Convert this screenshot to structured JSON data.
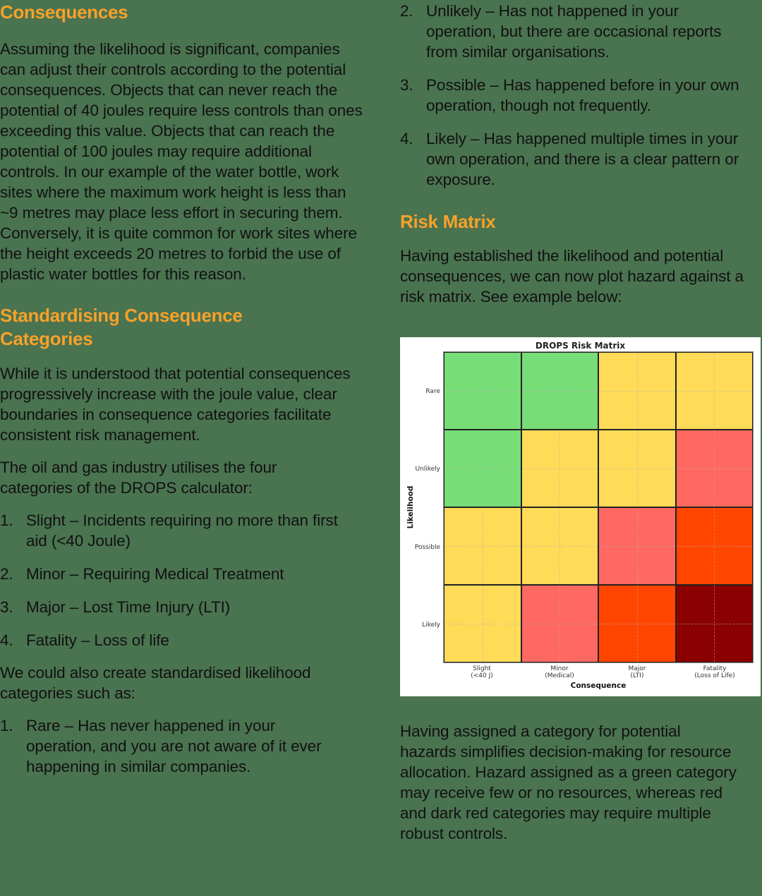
{
  "left_column": {
    "consequences": {
      "heading": "Consequences",
      "paragraph": "Assuming the likelihood is significant, companies can adjust their controls according to the potential consequences. Objects that can never reach the potential of 40 joules require less controls than ones exceeding this value. Objects that can reach the potential of 100 joules may require additional controls. In our example of the water bottle, work sites where the maximum work height is less than ~9 metres may place less effort in securing them. Conversely, it is quite common for work sites where the height exceeds 20 metres to forbid the use of plastic water bottles for this reason."
    },
    "standardising": {
      "heading": "Standardising Consequence Categories",
      "paragraph_1": "While it is understood that potential consequences progressively increase with the joule value, clear boundaries in consequence categories facilitate consistent risk management.",
      "paragraph_2": "The oil and gas industry utilises the four categories of the DROPS calculator:",
      "consequence_list": [
        {
          "num": "1.",
          "text": "Slight – Incidents requiring no more than first aid (<40 Joule)"
        },
        {
          "num": "2.",
          "text": "Minor – Requiring Medical Treatment"
        },
        {
          "num": "3.",
          "text": "Major – Lost Time Injury (LTI)"
        },
        {
          "num": "4.",
          "text": "Fatality – Loss of life"
        }
      ],
      "paragraph_3": "We could also create standardised likelihood categories such as:",
      "likelihood_list_start": [
        {
          "num": "1.",
          "text": "Rare – Has never happened in your operation, and you are not aware of it ever happening in similar companies."
        }
      ]
    }
  },
  "right_column": {
    "likelihood_list_continued": [
      {
        "num": "2.",
        "text": "Unlikely – Has not happened in your operation, but there are occasional reports from similar organisations."
      },
      {
        "num": "3.",
        "text": "Possible – Has happened before in your own operation, though not frequently."
      },
      {
        "num": "4.",
        "text": "Likely – Has happened multiple times in your own operation, and there is a clear pattern or exposure."
      }
    ],
    "risk_matrix": {
      "heading": "Risk Matrix",
      "intro": "Having established the likelihood and potential consequences, we can now plot hazard against a risk matrix. See example below:",
      "outro": "Having assigned a category for potential hazards simplifies decision-making for resource allocation. Hazard assigned as a green category may receive few or no resources, whereas red and dark red categories may require multiple robust controls."
    }
  },
  "colors": {
    "background": "#4a7350",
    "heading": "#f7a12a",
    "text": "#111111",
    "green": "#77dd77",
    "yellow": "#ffdb58",
    "light_red": "#ff6961",
    "orange_red": "#ff4500",
    "dark_red": "#8b0000"
  },
  "chart_data": {
    "type": "heatmap",
    "title": "DROPS Risk Matrix",
    "xlabel": "Consequence",
    "ylabel": "Likelihood",
    "x_categories": [
      "Slight\n(<40 J)",
      "Minor\n(Medical)",
      "Major\n(LTI)",
      "Fatality\n(Loss of Life)"
    ],
    "x_tick_lines": [
      [
        "Slight",
        "(<40 J)"
      ],
      [
        "Minor",
        "(Medical)"
      ],
      [
        "Major",
        "(LTI)"
      ],
      [
        "Fatality",
        "(Loss of Life)"
      ]
    ],
    "y_categories": [
      "Rare",
      "Unlikely",
      "Possible",
      "Likely"
    ],
    "legend": null,
    "grid": true,
    "cells": [
      [
        "green",
        "green",
        "yellow",
        "yellow"
      ],
      [
        "green",
        "yellow",
        "yellow",
        "light_red"
      ],
      [
        "yellow",
        "yellow",
        "light_red",
        "orange_red"
      ],
      [
        "yellow",
        "light_red",
        "orange_red",
        "dark_red"
      ]
    ],
    "cell_colors_hex": [
      [
        "#77dd77",
        "#77dd77",
        "#ffdb58",
        "#ffdb58"
      ],
      [
        "#77dd77",
        "#ffdb58",
        "#ffdb58",
        "#ff6961"
      ],
      [
        "#ffdb58",
        "#ffdb58",
        "#ff6961",
        "#ff4500"
      ],
      [
        "#ffdb58",
        "#ff6961",
        "#ff4500",
        "#8b0000"
      ]
    ]
  }
}
